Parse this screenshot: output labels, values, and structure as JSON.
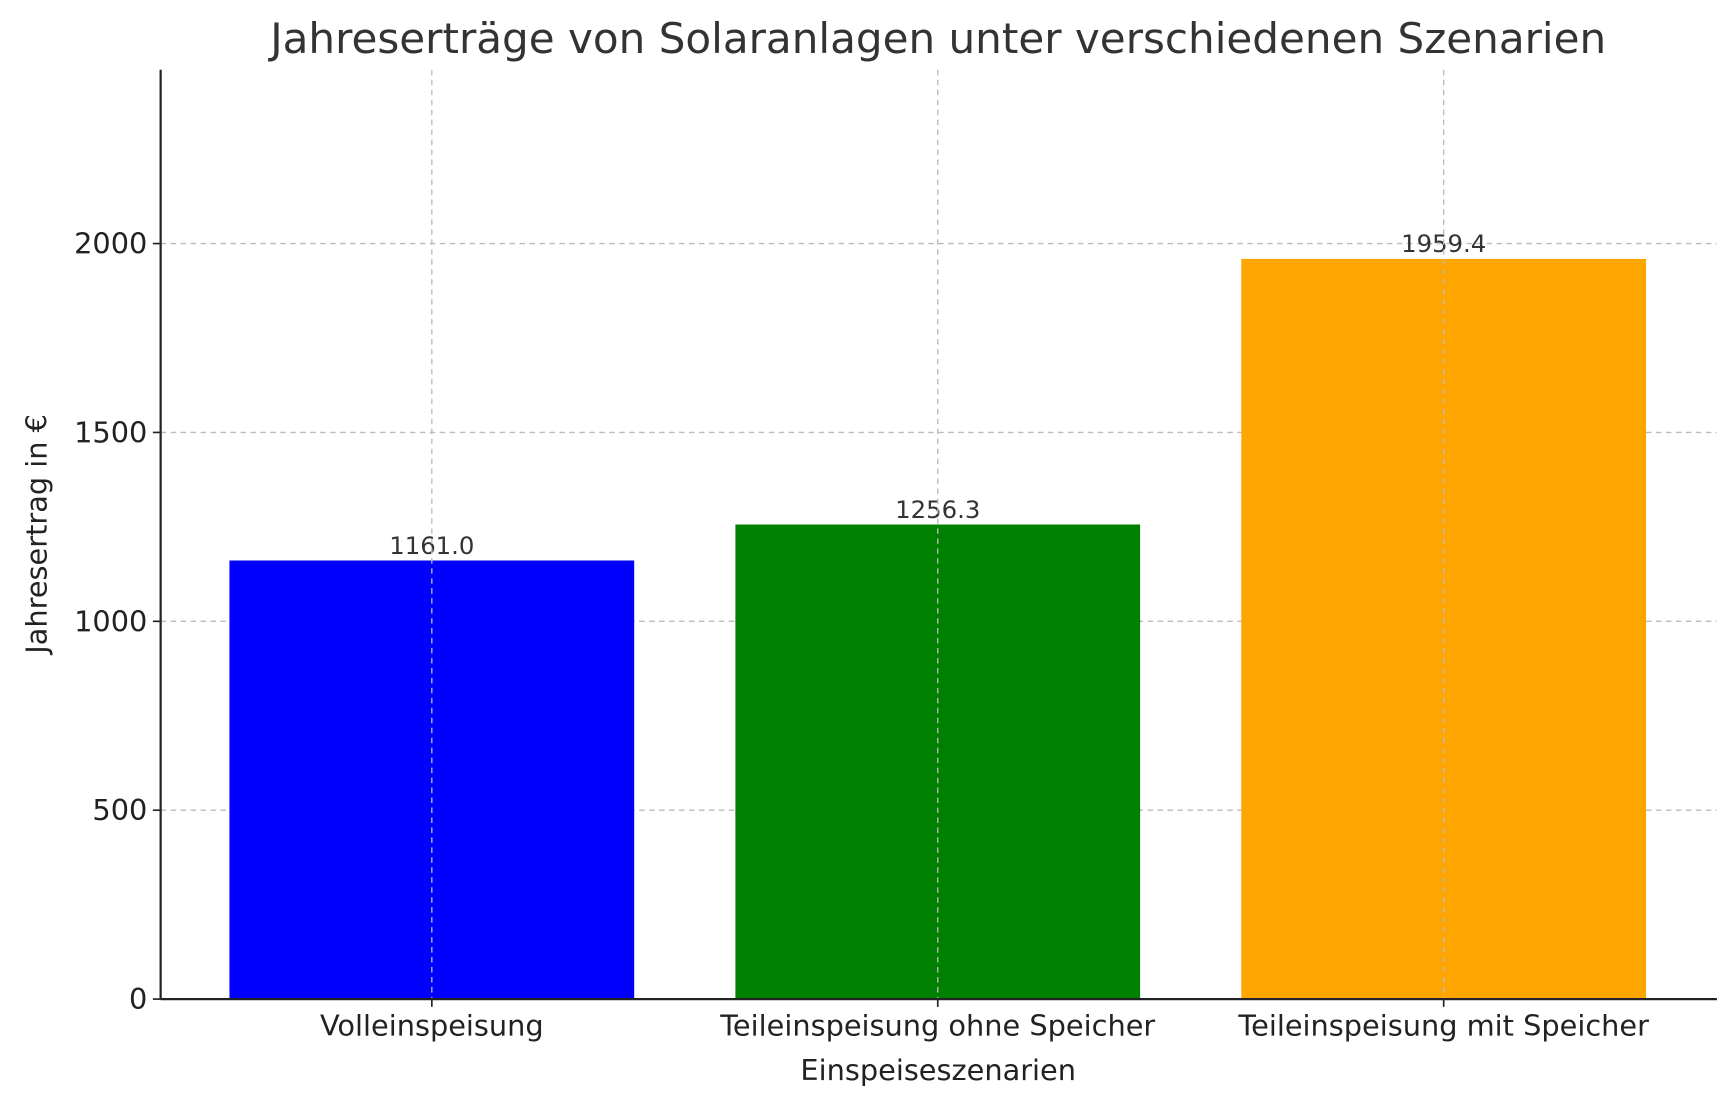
{
  "chart_data": {
    "type": "bar",
    "title": "Jahreserträge von Solaranlagen unter verschiedenen Szenarien",
    "xlabel": "Einspeiseszenarien",
    "ylabel": "Jahresertrag in €",
    "categories": [
      "Volleinspeisung",
      "Teileinspeisung ohne Speicher",
      "Teileinspeisung mit Speicher"
    ],
    "values": [
      1161.0,
      1256.3,
      1959.4
    ],
    "data_labels": [
      "1161.0",
      "1256.3",
      "1959.4"
    ],
    "colors": [
      "#0000ff",
      "#008000",
      "#ffa500"
    ],
    "ylim": [
      0,
      2460
    ],
    "yticks": [
      0,
      500,
      1000,
      1500,
      2000
    ],
    "grid": true
  }
}
